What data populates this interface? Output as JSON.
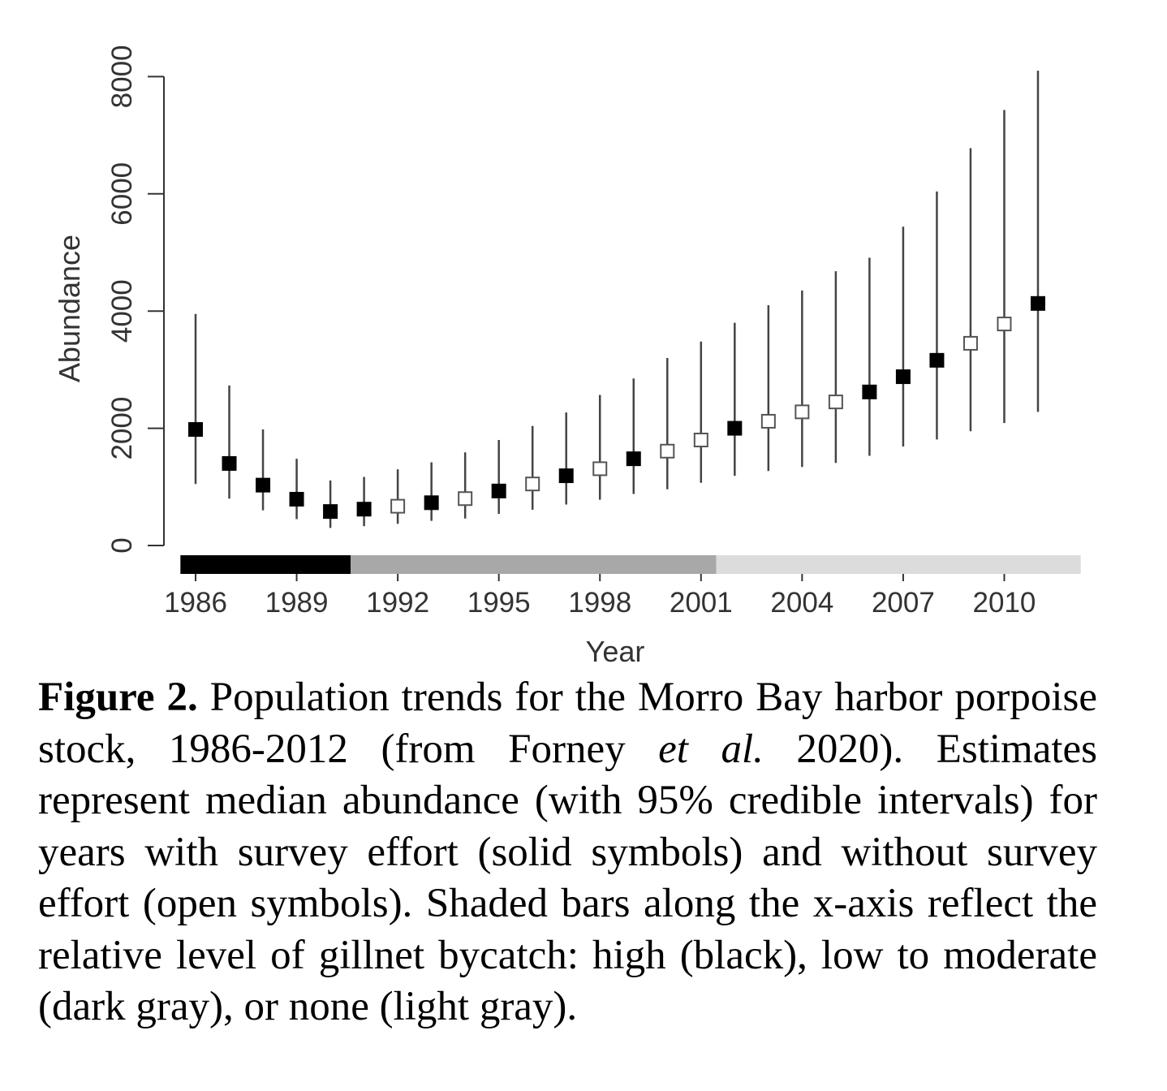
{
  "chart_data": {
    "type": "scatter",
    "xlabel": "Year",
    "ylabel": "Abundance",
    "x_ticks": [
      1986,
      1989,
      1992,
      1995,
      1998,
      2001,
      2004,
      2007,
      2010
    ],
    "y_ticks": [
      0,
      2000,
      4000,
      6000,
      8000
    ],
    "xlim": [
      1986,
      2012
    ],
    "ylim": [
      0,
      8000
    ],
    "points": [
      {
        "year": 1986,
        "median": 1980,
        "lower": 1050,
        "upper": 3950,
        "survey": true
      },
      {
        "year": 1987,
        "median": 1400,
        "lower": 800,
        "upper": 2730,
        "survey": true
      },
      {
        "year": 1988,
        "median": 1030,
        "lower": 600,
        "upper": 1980,
        "survey": true
      },
      {
        "year": 1989,
        "median": 790,
        "lower": 450,
        "upper": 1480,
        "survey": true
      },
      {
        "year": 1990,
        "median": 580,
        "lower": 300,
        "upper": 1110,
        "survey": true
      },
      {
        "year": 1991,
        "median": 620,
        "lower": 330,
        "upper": 1170,
        "survey": true
      },
      {
        "year": 1992,
        "median": 670,
        "lower": 370,
        "upper": 1300,
        "survey": false
      },
      {
        "year": 1993,
        "median": 730,
        "lower": 420,
        "upper": 1420,
        "survey": true
      },
      {
        "year": 1994,
        "median": 800,
        "lower": 460,
        "upper": 1590,
        "survey": false
      },
      {
        "year": 1995,
        "median": 930,
        "lower": 540,
        "upper": 1800,
        "survey": true
      },
      {
        "year": 1996,
        "median": 1050,
        "lower": 610,
        "upper": 2040,
        "survey": false
      },
      {
        "year": 1997,
        "median": 1190,
        "lower": 700,
        "upper": 2270,
        "survey": true
      },
      {
        "year": 1998,
        "median": 1310,
        "lower": 780,
        "upper": 2570,
        "survey": false
      },
      {
        "year": 1999,
        "median": 1480,
        "lower": 880,
        "upper": 2850,
        "survey": true
      },
      {
        "year": 2000,
        "median": 1610,
        "lower": 960,
        "upper": 3200,
        "survey": false
      },
      {
        "year": 2001,
        "median": 1800,
        "lower": 1070,
        "upper": 3480,
        "survey": false
      },
      {
        "year": 2002,
        "median": 2000,
        "lower": 1190,
        "upper": 3800,
        "survey": true
      },
      {
        "year": 2003,
        "median": 2120,
        "lower": 1270,
        "upper": 4100,
        "survey": false
      },
      {
        "year": 2004,
        "median": 2280,
        "lower": 1340,
        "upper": 4350,
        "survey": false
      },
      {
        "year": 2005,
        "median": 2450,
        "lower": 1410,
        "upper": 4680,
        "survey": false
      },
      {
        "year": 2006,
        "median": 2620,
        "lower": 1530,
        "upper": 4910,
        "survey": true
      },
      {
        "year": 2007,
        "median": 2880,
        "lower": 1690,
        "upper": 5440,
        "survey": true
      },
      {
        "year": 2008,
        "median": 3160,
        "lower": 1810,
        "upper": 6040,
        "survey": true
      },
      {
        "year": 2009,
        "median": 3450,
        "lower": 1950,
        "upper": 6780,
        "survey": false
      },
      {
        "year": 2010,
        "median": 3780,
        "lower": 2090,
        "upper": 7430,
        "survey": false
      },
      {
        "year": 2011,
        "median": 4130,
        "lower": 2280,
        "upper": 8100,
        "survey": true
      }
    ],
    "bycatch_bars": [
      {
        "level": "high",
        "color": "#000000",
        "start": 1985.55,
        "end": 1990.6
      },
      {
        "level": "low to moderate",
        "color": "#a8a8a8",
        "start": 1990.6,
        "end": 2001.45
      },
      {
        "level": "none",
        "color": "#dcdcdc",
        "start": 2001.45,
        "end": 2012.27
      }
    ],
    "colors": {
      "marker": "#000000",
      "error_bar": "#444444",
      "axis": "#333333"
    }
  },
  "caption": {
    "label": "Figure 2.",
    "text_1": " Population trends for the Morro Bay harbor porpoise stock, 1986-2012 (from Forney ",
    "italic": "et al.",
    "text_2": " 2020). Estimates represent median abundance (with 95% credible intervals) for years with survey effort (solid symbols) and without survey effort (open symbols). Shaded bars along the x-axis reflect the relative level of gillnet bycatch: high (black), low to moderate (dark gray), or none (light gray)."
  }
}
